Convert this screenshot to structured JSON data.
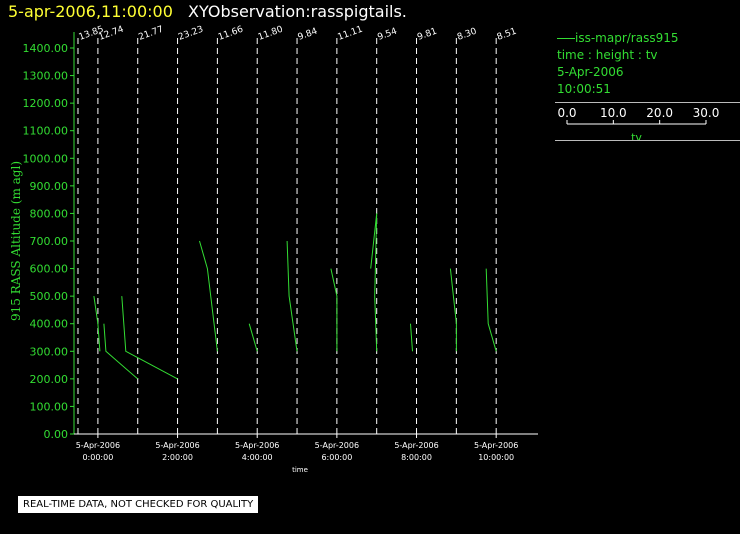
{
  "header": {
    "timestamp": "5-apr-2006,11:00:00",
    "title": "XYObservation:rasspigtails."
  },
  "legend": {
    "series_label": "iss-mapr/rass915",
    "variables": "time : height : tv",
    "date": "5-Apr-2006",
    "time": "10:00:51",
    "scale_ticks": [
      "0.0",
      "10.0",
      "20.0",
      "30.0"
    ],
    "scale_label": "tv"
  },
  "notice": "REAL-TIME DATA, NOT CHECKED FOR QUALITY",
  "colors": {
    "series": "#33dd33",
    "axis": "#33dd33",
    "guides": "#ffffff",
    "timestamp": "#ffff33",
    "background": "#000000"
  },
  "chart_data": {
    "type": "line",
    "xlabel": "time",
    "ylabel": "915 RASS Altitude (m agl)",
    "ylim": [
      0,
      1400
    ],
    "y_ticks": [
      "0.00",
      "100.00",
      "200.00",
      "300.00",
      "400.00",
      "500.00",
      "600.00",
      "700.00",
      "800.00",
      "900.00",
      "1000.00",
      "1100.00",
      "1200.00",
      "1300.00",
      "1400.00"
    ],
    "xlim": [
      -0.6,
      11.05
    ],
    "x_ticks": [
      {
        "hour": 0,
        "date": "5-Apr-2006",
        "time": "0:00:00"
      },
      {
        "hour": 2,
        "date": "5-Apr-2006",
        "time": "2:00:00"
      },
      {
        "hour": 4,
        "date": "5-Apr-2006",
        "time": "4:00:00"
      },
      {
        "hour": 6,
        "date": "5-Apr-2006",
        "time": "6:00:00"
      },
      {
        "hour": 8,
        "date": "5-Apr-2006",
        "time": "8:00:00"
      },
      {
        "hour": 10,
        "date": "5-Apr-2006",
        "time": "10:00:00"
      }
    ],
    "profile_hours": [
      -0.5,
      0,
      1,
      2,
      3,
      4,
      5,
      6,
      7,
      8,
      9,
      10
    ],
    "profile_labels": [
      "13.85",
      "12.74",
      "21.77",
      "23.23",
      "11.66",
      "11.80",
      "9.84",
      "11.11",
      "9.54",
      "9.81",
      "8.30",
      "8.51"
    ],
    "tv_scale": 0.1,
    "profiles": [
      {
        "hour": 0,
        "points": [
          [
            -0.1,
            500
          ],
          [
            0.0,
            400
          ],
          [
            0.05,
            300
          ]
        ]
      },
      {
        "hour": 0,
        "points": [
          [
            0.15,
            400
          ],
          [
            0.2,
            300
          ],
          [
            1.0,
            200
          ]
        ]
      },
      {
        "hour": 1,
        "points": [
          [
            0.6,
            500
          ],
          [
            0.7,
            300
          ],
          [
            2.0,
            200
          ]
        ]
      },
      {
        "hour": 2,
        "points": [
          [
            2.55,
            700
          ],
          [
            2.75,
            600
          ],
          [
            3.0,
            300
          ]
        ]
      },
      {
        "hour": 3,
        "points": [
          [
            3.8,
            400
          ],
          [
            4.0,
            300
          ]
        ]
      },
      {
        "hour": 4,
        "points": [
          [
            4.75,
            700
          ],
          [
            4.8,
            500
          ],
          [
            5.0,
            300
          ]
        ]
      },
      {
        "hour": 5,
        "points": [
          [
            5.85,
            600
          ],
          [
            6.0,
            500
          ],
          [
            6.0,
            300
          ]
        ]
      },
      {
        "hour": 6,
        "points": [
          [
            6.85,
            600
          ],
          [
            7.0,
            800
          ],
          [
            6.95,
            500
          ],
          [
            7.0,
            300
          ]
        ]
      },
      {
        "hour": 7,
        "points": [
          [
            7.85,
            400
          ],
          [
            7.9,
            300
          ]
        ]
      },
      {
        "hour": 8,
        "points": [
          [
            8.85,
            600
          ],
          [
            9.0,
            400
          ],
          [
            9.0,
            300
          ]
        ]
      },
      {
        "hour": 9,
        "points": [
          [
            9.75,
            600
          ],
          [
            9.8,
            400
          ],
          [
            10.0,
            300
          ]
        ]
      }
    ]
  }
}
